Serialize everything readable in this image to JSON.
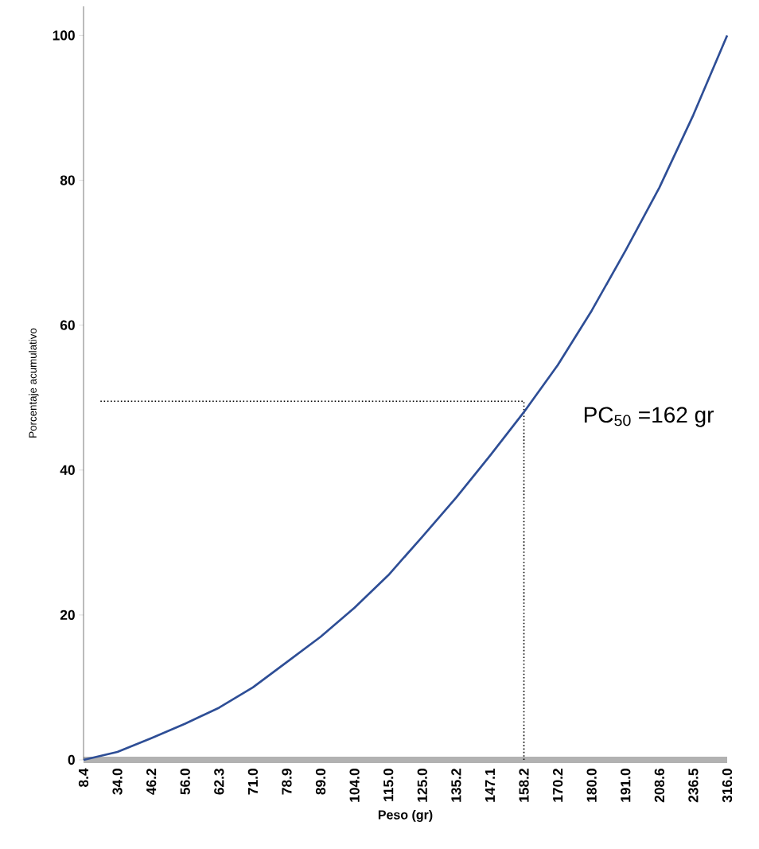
{
  "chart_data": {
    "type": "line",
    "xlabel": "Peso (gr)",
    "ylabel": "Porcentaje acumulativo",
    "categories": [
      "8.4",
      "34.0",
      "46.2",
      "56.0",
      "62.3",
      "71.0",
      "78.9",
      "89.0",
      "104.0",
      "115.0",
      "125.0",
      "135.2",
      "147.1",
      "158.2",
      "170.2",
      "180.0",
      "191.0",
      "208.6",
      "236.5",
      "316.0"
    ],
    "values": [
      0,
      1.1,
      3.0,
      5.0,
      7.2,
      10.0,
      13.5,
      17.0,
      21.0,
      25.5,
      30.8,
      36.2,
      42.0,
      48.0,
      54.5,
      62.0,
      70.3,
      79.0,
      89.0,
      100
    ],
    "color": "#2e4e96",
    "ylim": [
      0,
      104
    ],
    "yticks": [
      0,
      20,
      40,
      60,
      80,
      100
    ],
    "marker": "none",
    "line_style": "solid",
    "grid": false,
    "ref_lines": [
      {
        "axis": "y",
        "value": 49.5,
        "line_style": "dotted"
      },
      {
        "axis": "x",
        "value": "158.2",
        "line_style": "dotted"
      }
    ],
    "annotations": [
      "PC$_{50}$ =162 gr"
    ]
  }
}
